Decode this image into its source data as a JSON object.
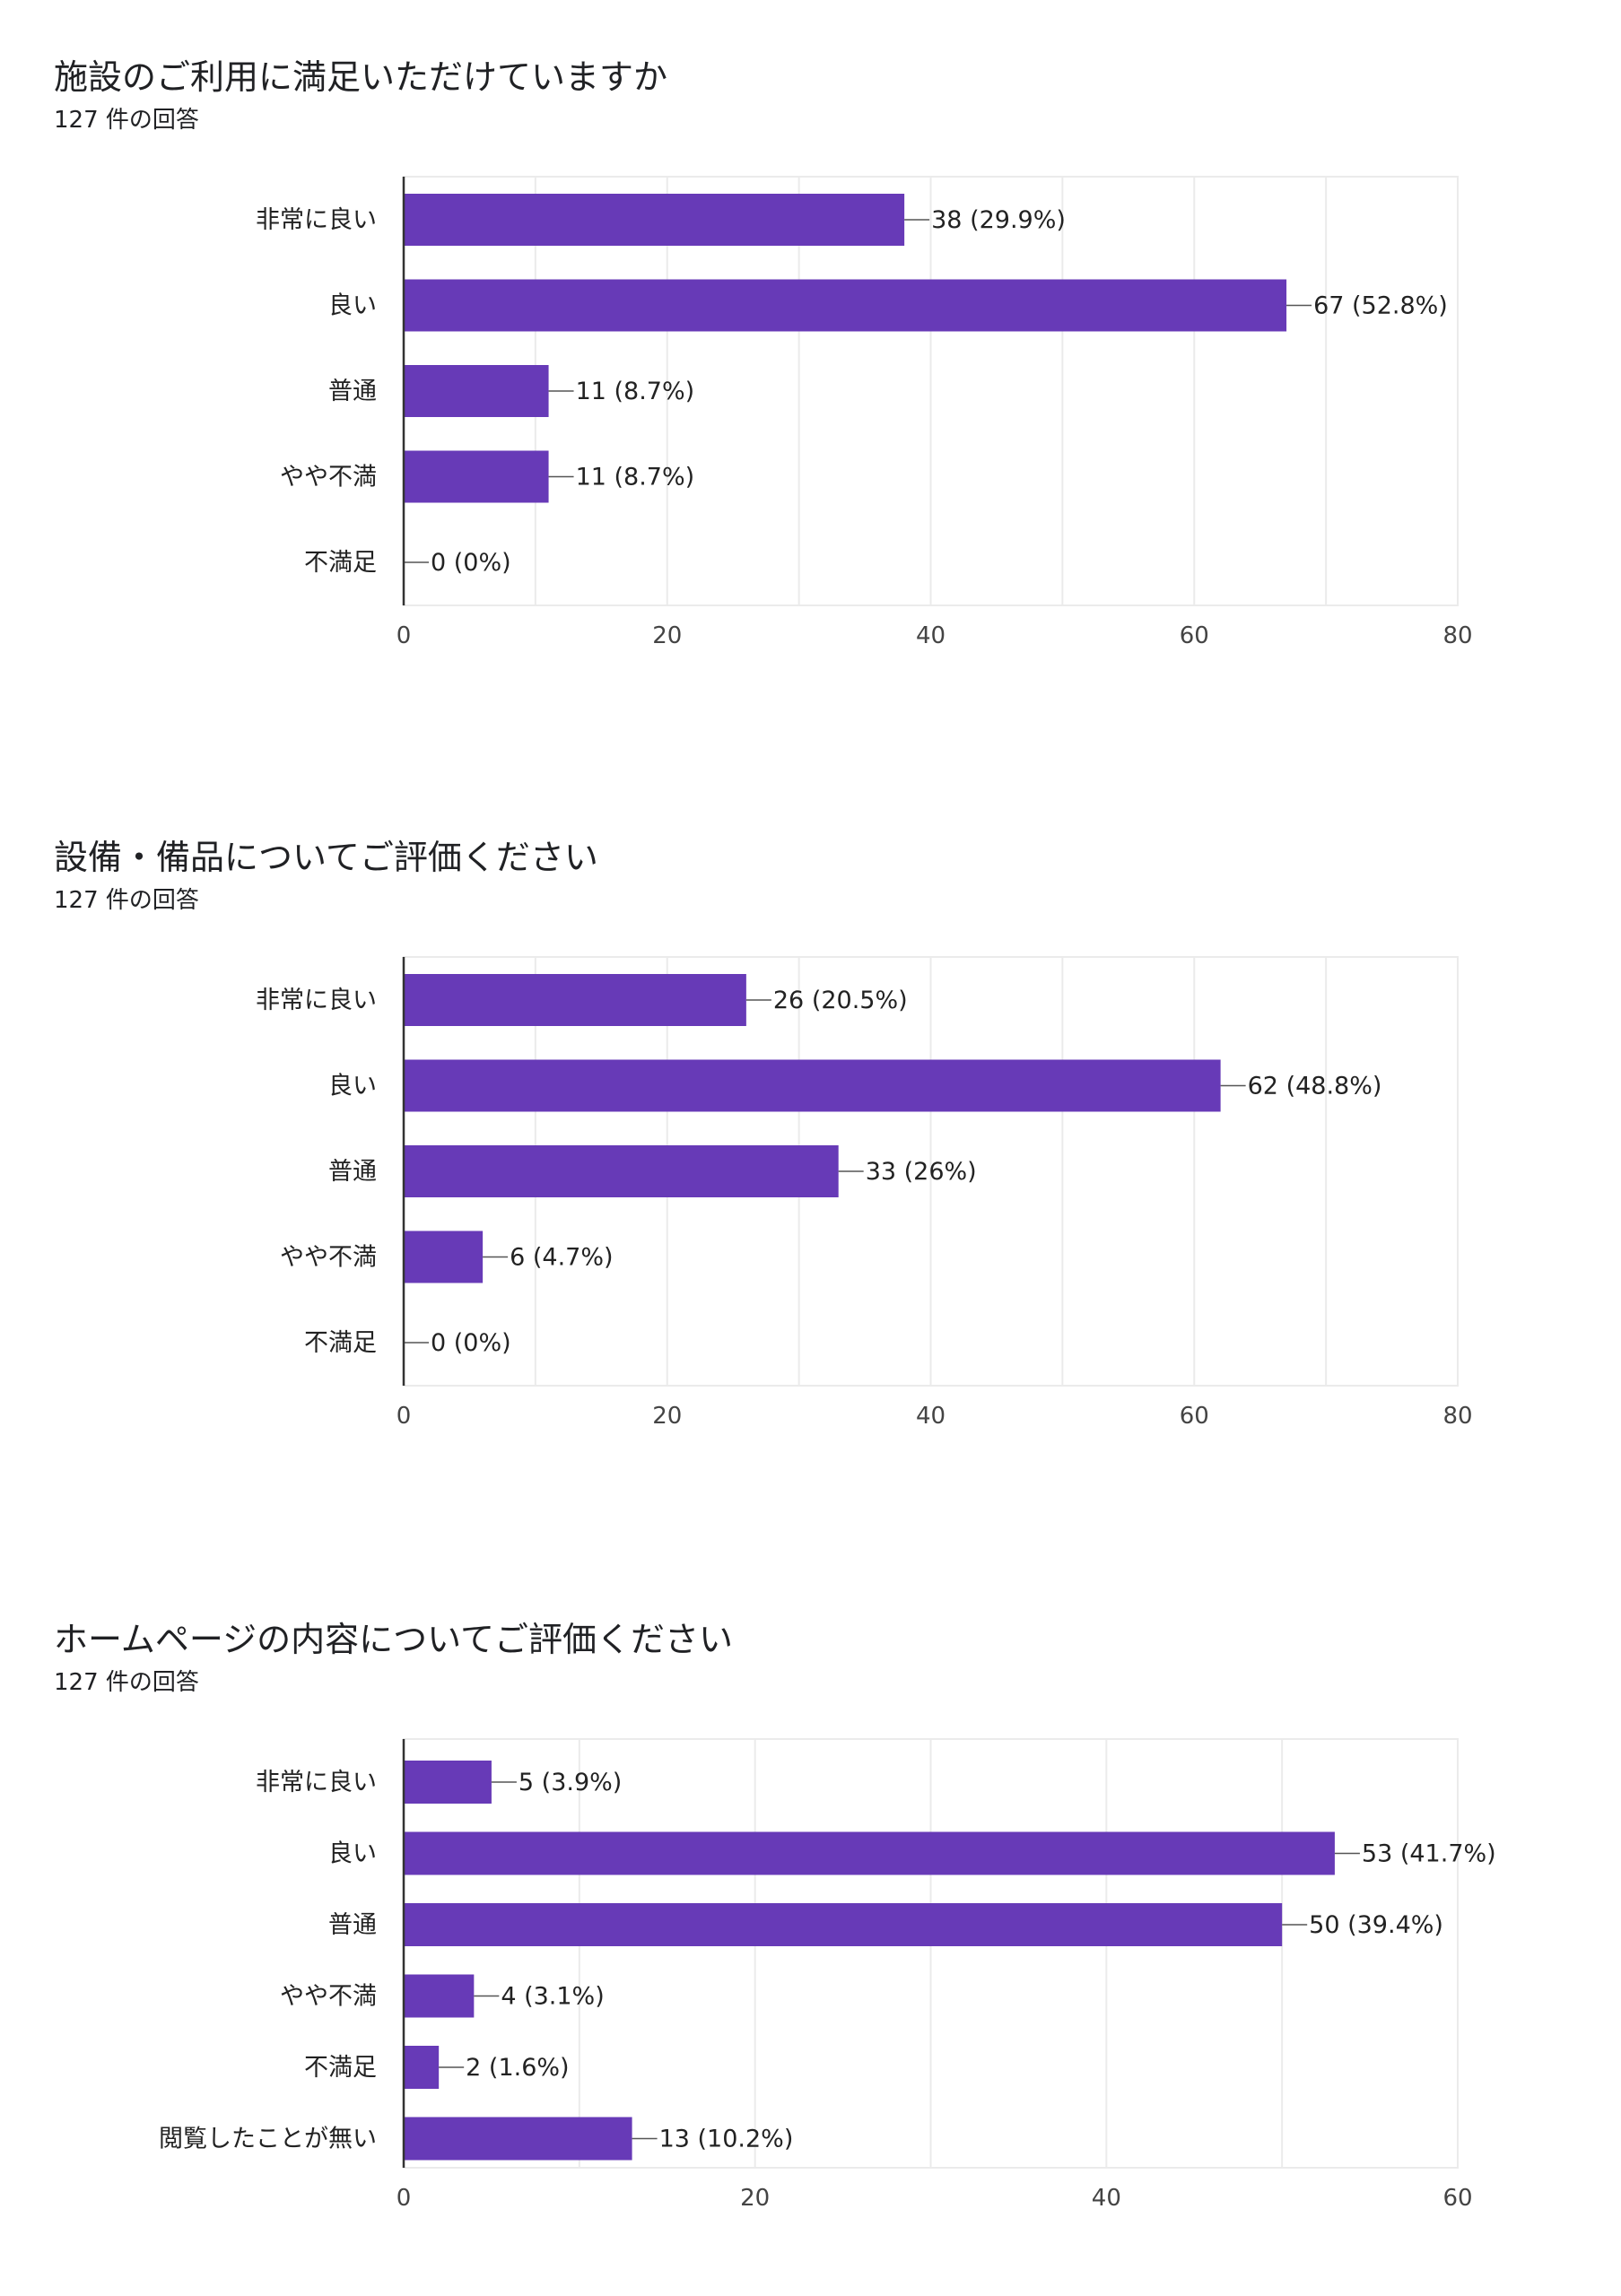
{
  "colors": {
    "bar": "#673ab7",
    "grid": "#ebebeb",
    "axis": "#333333",
    "text": "#222222",
    "leader": "#555555"
  },
  "chart_data": [
    {
      "type": "bar",
      "orientation": "horizontal",
      "title": "施設のご利用に満足いただけていますか",
      "subtitle": "127 件の回答",
      "categories": [
        "非常に良い",
        "良い",
        "普通",
        "やや不満",
        "不満足"
      ],
      "values": [
        38,
        67,
        11,
        11,
        0
      ],
      "data_labels": [
        "38 (29.9%)",
        "67 (52.8%)",
        "11 (8.7%)",
        "11 (8.7%)",
        "0 (0%)"
      ],
      "xlim": [
        0,
        80
      ],
      "xticks": [
        0,
        20,
        40,
        60,
        80
      ],
      "grid": true,
      "legend": "none"
    },
    {
      "type": "bar",
      "orientation": "horizontal",
      "title": "設備・備品についてご評価ください",
      "subtitle": "127 件の回答",
      "categories": [
        "非常に良い",
        "良い",
        "普通",
        "やや不満",
        "不満足"
      ],
      "values": [
        26,
        62,
        33,
        6,
        0
      ],
      "data_labels": [
        "26 (20.5%)",
        "62 (48.8%)",
        "33 (26%)",
        "6 (4.7%)",
        "0 (0%)"
      ],
      "xlim": [
        0,
        80
      ],
      "xticks": [
        0,
        20,
        40,
        60,
        80
      ],
      "grid": true,
      "legend": "none"
    },
    {
      "type": "bar",
      "orientation": "horizontal",
      "title": "ホームページの内容についてご評価ください",
      "subtitle": "127 件の回答",
      "categories": [
        "非常に良い",
        "良い",
        "普通",
        "やや不満",
        "不満足",
        "閲覧したことが無い"
      ],
      "values": [
        5,
        53,
        50,
        4,
        2,
        13
      ],
      "data_labels": [
        "5 (3.9%)",
        "53 (41.7%)",
        "50 (39.4%)",
        "4 (3.1%)",
        "2 (1.6%)",
        "13 (10.2%)"
      ],
      "xlim": [
        0,
        60
      ],
      "xticks": [
        0,
        20,
        40,
        60
      ],
      "grid": true,
      "legend": "none"
    }
  ]
}
